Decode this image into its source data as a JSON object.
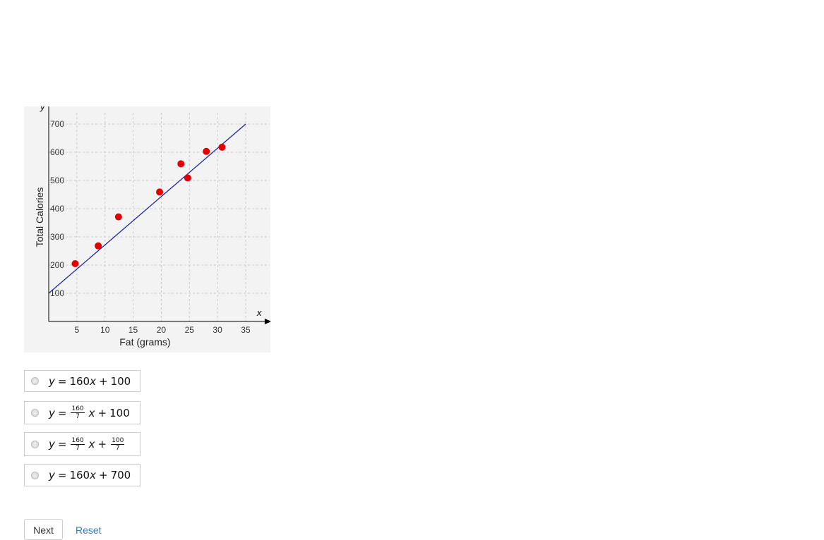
{
  "chart_data": {
    "type": "scatter",
    "xlabel": "Fat (grams)",
    "ylabel": "Total Calories",
    "x_axis_name": "x",
    "y_axis_name": "y",
    "xlim": [
      0,
      38
    ],
    "ylim": [
      0,
      740
    ],
    "x_ticks": [
      5,
      10,
      15,
      20,
      25,
      30,
      35
    ],
    "y_ticks": [
      100,
      200,
      300,
      400,
      500,
      600,
      700
    ],
    "grid": true,
    "points": [
      {
        "x": 4.7,
        "y": 205
      },
      {
        "x": 8.8,
        "y": 268
      },
      {
        "x": 12.4,
        "y": 371
      },
      {
        "x": 19.7,
        "y": 459
      },
      {
        "x": 23.5,
        "y": 559
      },
      {
        "x": 24.7,
        "y": 509
      },
      {
        "x": 28,
        "y": 603
      },
      {
        "x": 30.8,
        "y": 618
      }
    ],
    "trend_line": {
      "x": [
        0,
        35
      ],
      "y": [
        100,
        700
      ]
    },
    "colors": {
      "points": "#e00000",
      "line": "#1a1a9e",
      "background": "#f3f3f3",
      "grid": "#c8c8c8"
    }
  },
  "options": [
    {
      "y": "y",
      "eq": "=",
      "a": "160",
      "x": "x",
      "plus": "+",
      "b": "100"
    },
    {
      "y": "y",
      "eq": "=",
      "a_num": "160",
      "a_den": "7",
      "x": "x",
      "plus": "+",
      "b": "100"
    },
    {
      "y": "y",
      "eq": "=",
      "a_num": "160",
      "a_den": "7",
      "x": "x",
      "plus": "+",
      "b_num": "100",
      "b_den": "7"
    },
    {
      "y": "y",
      "eq": "=",
      "a": "160",
      "x": "x",
      "plus": "+",
      "b": "700"
    }
  ],
  "buttons": {
    "next": "Next",
    "reset": "Reset"
  }
}
